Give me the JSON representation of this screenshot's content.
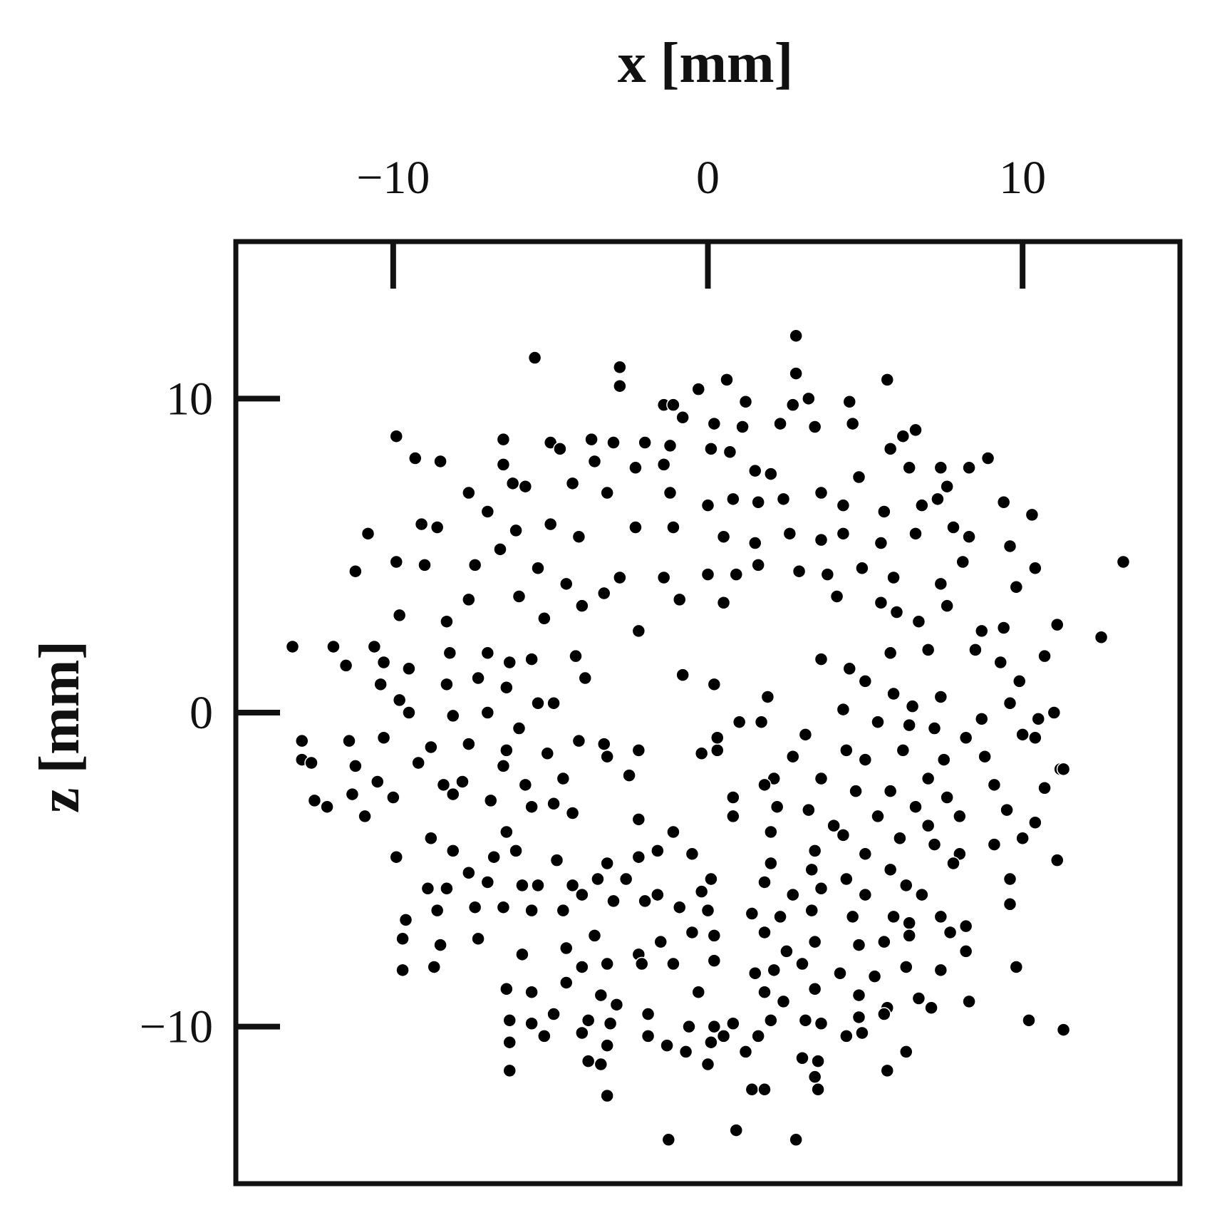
{
  "chart_data": {
    "type": "scatter",
    "x_label": "x [mm]",
    "y_label": "z [mm]",
    "xlim": [
      -15,
      15
    ],
    "ylim": [
      -15,
      15
    ],
    "xticks": [
      {
        "value": -10,
        "label": "−10"
      },
      0,
      10
    ],
    "yticks": [
      {
        "value": -10,
        "label": "−10"
      },
      0,
      10
    ],
    "x_axis_position": "top",
    "color": "#000000",
    "x": [
      -5.5,
      -2.8,
      -2.8,
      0.6,
      2.8,
      2.8,
      5.7,
      -0.3,
      -1.4,
      -1.1,
      1.2,
      3.2,
      2.7,
      4.5,
      4.6,
      0.2,
      -0.8,
      1.1,
      2.3,
      3.4,
      -3.7,
      -5.0,
      -6.5,
      -3.0,
      -2.0,
      -1.2,
      0.1,
      0.7,
      5.8,
      6.6,
      6.2,
      8.9,
      8.3,
      7.4,
      -9.9,
      -9.3,
      -8.5,
      -6.5,
      -4.7,
      -3.6,
      -2.3,
      -1.4,
      1.5,
      2.0,
      4.8,
      6.4,
      7.6,
      -7.6,
      -6.2,
      -5.8,
      -4.3,
      -3.2,
      -1.2,
      0.0,
      0.8,
      1.6,
      2.4,
      3.6,
      4.3,
      5.6,
      6.8,
      7.3,
      9.4,
      10.3,
      -10.8,
      -9.1,
      -8.6,
      -7.0,
      -6.1,
      -5.0,
      -4.1,
      -2.3,
      -1.1,
      0.5,
      1.5,
      2.6,
      3.6,
      4.3,
      5.5,
      6.6,
      7.8,
      8.3,
      9.6,
      -11.2,
      -9.9,
      -9.0,
      -7.4,
      -6.6,
      -5.4,
      -4.5,
      -2.8,
      -1.4,
      0.0,
      0.9,
      1.6,
      2.9,
      3.8,
      4.9,
      5.9,
      7.4,
      8.1,
      10.4,
      9.8,
      -9.8,
      -8.3,
      -7.6,
      -6.0,
      -5.2,
      -4.0,
      -3.3,
      -2.2,
      0.5,
      -0.9,
      4.1,
      5.5,
      6.0,
      6.7,
      7.6,
      8.7,
      9.4,
      11.1,
      12.5,
      -13.2,
      -11.9,
      -10.6,
      -10.3,
      -9.5,
      -8.2,
      -7.0,
      -6.3,
      -5.6,
      -4.2,
      -3.9,
      -0.8,
      0.2,
      3.6,
      4.5,
      5.8,
      7.0,
      8.5,
      9.3,
      10.7,
      9.9,
      -11.5,
      -10.4,
      -9.8,
      -8.3,
      -7.3,
      -6.4,
      -5.4,
      -4.9,
      5.0,
      5.9,
      6.5,
      7.4,
      8.7,
      9.6,
      11.0,
      10.5,
      1.9,
      13.2,
      -9.5,
      -8.1,
      -7.0,
      -6.0,
      -4.1,
      -3.3,
      1.7,
      1.0,
      4.3,
      5.4,
      6.4,
      7.2,
      8.2,
      10.0,
      10.4,
      -12.9,
      -12.9,
      -12.6,
      -11.4,
      -10.3,
      -8.8,
      -7.6,
      -6.4,
      -5.1,
      -3.2,
      -2.2,
      -0.2,
      0.3,
      0.3,
      2.7,
      3.1,
      4.4,
      5.0,
      6.2,
      7.5,
      8.8,
      11.2,
      -11.2,
      -10.5,
      -9.2,
      -8.4,
      -7.8,
      -6.5,
      -5.8,
      -4.6,
      -2.5,
      2.1,
      3.6,
      4.7,
      5.8,
      7.0,
      7.6,
      9.1,
      10.7,
      11.3,
      -12.5,
      -12.1,
      -11.3,
      -10.0,
      -8.1,
      -6.9,
      -5.6,
      -4.9,
      -4.3,
      -2.2,
      0.8,
      1.8,
      2.2,
      3.2,
      4.0,
      5.4,
      6.6,
      7.0,
      8.0,
      9.5,
      10.4,
      -10.9,
      -8.8,
      -8.1,
      -6.4,
      -6.1,
      -1.1,
      0.8,
      2.0,
      3.4,
      4.3,
      5.0,
      6.1,
      7.2,
      8.0,
      9.1,
      10.0,
      -9.9,
      -7.6,
      -6.8,
      -5.9,
      -4.8,
      -4.3,
      -3.2,
      -2.2,
      -1.6,
      -0.5,
      0.1,
      2.0,
      3.3,
      4.4,
      5.8,
      6.3,
      7.8,
      9.6,
      11.1,
      -8.9,
      -8.3,
      -7.0,
      -5.4,
      -4.0,
      -3.5,
      -2.6,
      -1.6,
      -0.2,
      1.8,
      2.7,
      3.6,
      5.0,
      6.8,
      9.6,
      -9.6,
      -8.6,
      -7.4,
      -6.5,
      -5.6,
      -4.6,
      -3.0,
      -2.0,
      -0.9,
      0.0,
      1.4,
      2.3,
      3.3,
      4.6,
      5.9,
      6.4,
      7.4,
      8.2,
      -9.7,
      -8.5,
      -7.3,
      -5.9,
      -4.5,
      -3.6,
      -2.2,
      -1.5,
      -0.5,
      0.2,
      1.8,
      2.5,
      3.4,
      4.8,
      5.6,
      6.4,
      7.7,
      8.2,
      9.8,
      -9.7,
      -8.7,
      -4.0,
      -3.2,
      -2.1,
      -1.1,
      0.2,
      1.5,
      2.1,
      3.0,
      4.2,
      5.3,
      6.3,
      7.4,
      8.3,
      -6.4,
      -5.6,
      -4.5,
      -3.4,
      -2.9,
      -0.3,
      1.8,
      2.4,
      3.4,
      4.8,
      5.7,
      6.7,
      7.1,
      -6.3,
      -5.6,
      -4.9,
      -3.8,
      -3.1,
      -1.9,
      -0.6,
      0.2,
      0.8,
      2.0,
      3.1,
      3.6,
      4.8,
      5.6,
      10.2,
      11.3,
      -6.3,
      -5.2,
      -4.0,
      -3.2,
      -1.9,
      -1.3,
      -0.7,
      0.1,
      0.5,
      1.2,
      1.6,
      3.0,
      3.5,
      4.4,
      4.9,
      6.3,
      -6.3,
      -3.8,
      -3.4,
      0.0,
      3.4,
      5.7,
      -3.2,
      1.4,
      1.8,
      3.5,
      -1.25,
      0.9,
      2.8
    ],
    "values": [
      11.3,
      11.0,
      10.4,
      10.6,
      12.0,
      10.8,
      10.6,
      10.3,
      9.8,
      9.8,
      9.9,
      10.0,
      9.8,
      9.9,
      9.2,
      9.2,
      9.4,
      9.1,
      9.2,
      9.1,
      8.7,
      8.6,
      8.7,
      8.6,
      8.6,
      8.5,
      8.4,
      8.3,
      8.4,
      9.0,
      8.8,
      8.1,
      7.8,
      7.8,
      8.8,
      8.1,
      8.0,
      7.9,
      8.4,
      8.0,
      7.8,
      7.9,
      7.7,
      7.6,
      7.5,
      7.8,
      7.2,
      7.0,
      7.3,
      7.2,
      7.3,
      7.0,
      7.0,
      6.6,
      6.8,
      6.7,
      6.8,
      7.0,
      6.6,
      6.4,
      6.6,
      6.8,
      6.7,
      6.3,
      5.7,
      6.0,
      5.9,
      6.4,
      5.8,
      6.0,
      5.6,
      5.9,
      5.9,
      5.6,
      5.4,
      5.7,
      5.5,
      5.7,
      5.4,
      5.7,
      5.9,
      5.6,
      5.3,
      4.5,
      4.8,
      4.7,
      4.7,
      5.2,
      4.6,
      4.1,
      4.3,
      4.3,
      4.4,
      4.4,
      4.7,
      4.5,
      4.4,
      4.6,
      4.3,
      4.1,
      4.8,
      4.6,
      4.0,
      3.1,
      2.9,
      3.6,
      3.7,
      3.0,
      3.4,
      3.8,
      2.6,
      3.5,
      3.6,
      3.7,
      3.5,
      3.2,
      2.9,
      3.4,
      2.6,
      2.7,
      2.8,
      2.4,
      2.1,
      2.1,
      2.1,
      1.6,
      1.4,
      1.9,
      1.9,
      1.6,
      1.7,
      1.8,
      1.1,
      1.2,
      0.9,
      1.7,
      1.4,
      1.9,
      2.0,
      2.0,
      1.6,
      1.8,
      1.0,
      1.5,
      0.9,
      0.4,
      0.9,
      1.1,
      0.8,
      0.3,
      0.3,
      1.0,
      0.6,
      0.2,
      0.5,
      -0.2,
      0.3,
      0.0,
      -0.2,
      0.5,
      4.8,
      0.0,
      -0.1,
      0.0,
      -0.5,
      -0.9,
      -1.0,
      -0.3,
      -0.3,
      0.1,
      -0.3,
      -0.4,
      -0.5,
      -0.8,
      -0.7,
      -0.8,
      -0.9,
      -1.5,
      -1.6,
      -0.9,
      -0.8,
      -1.1,
      -1.0,
      -1.2,
      -1.3,
      -1.4,
      -1.2,
      -1.3,
      -1.2,
      -0.8,
      -1.4,
      -0.7,
      -1.2,
      -1.5,
      -1.2,
      -1.5,
      -1.4,
      -1.8,
      -1.7,
      -2.2,
      -1.6,
      -2.3,
      -2.2,
      -1.7,
      -2.3,
      -2.1,
      -2.0,
      -2.1,
      -2.1,
      -2.5,
      -2.5,
      -2.1,
      -2.7,
      -2.3,
      -2.4,
      -1.8,
      -2.8,
      -3.0,
      -2.6,
      -2.7,
      -2.6,
      -2.8,
      -3.0,
      -2.9,
      -3.2,
      -3.4,
      -2.7,
      -2.3,
      -3.0,
      -3.1,
      -3.6,
      -3.3,
      -3.0,
      -3.6,
      -3.3,
      -3.1,
      -3.5,
      -3.3,
      -4.0,
      -4.4,
      -3.8,
      -4.4,
      -3.8,
      -3.3,
      -3.8,
      -4.4,
      -3.9,
      -4.5,
      -4.0,
      -4.2,
      -4.5,
      -4.2,
      -4.0,
      -4.6,
      -5.1,
      -4.6,
      -5.5,
      -4.7,
      -5.5,
      -4.8,
      -4.6,
      -4.4,
      -4.5,
      -5.3,
      -4.8,
      -5.0,
      -5.3,
      -5.0,
      -5.5,
      -4.8,
      -5.3,
      -4.7,
      -5.6,
      -5.6,
      -5.4,
      -5.5,
      -5.8,
      -5.3,
      -5.3,
      -5.8,
      -5.7,
      -5.4,
      -5.8,
      -5.6,
      -5.8,
      -5.8,
      -6.1,
      -6.6,
      -6.3,
      -6.2,
      -6.2,
      -6.3,
      -6.3,
      -6.0,
      -6.0,
      -6.2,
      -6.3,
      -6.4,
      -6.5,
      -6.3,
      -6.5,
      -6.5,
      -6.7,
      -6.5,
      -6.8,
      -7.2,
      -7.4,
      -7.2,
      -7.7,
      -7.5,
      -7.1,
      -7.7,
      -7.3,
      -7.0,
      -7.1,
      -7.0,
      -7.6,
      -7.3,
      -7.4,
      -7.3,
      -7.1,
      -7.0,
      -7.6,
      -8.1,
      -8.2,
      -8.1,
      -8.1,
      -8.0,
      -8.0,
      -8.0,
      -7.9,
      -8.3,
      -8.2,
      -8.0,
      -8.3,
      -8.4,
      -8.1,
      -8.2,
      -9.2,
      -8.8,
      -8.9,
      -8.6,
      -9.0,
      -9.3,
      -8.9,
      -8.9,
      -9.2,
      -8.8,
      -9.0,
      -9.4,
      -9.1,
      -9.4,
      -9.8,
      -9.9,
      -9.6,
      -9.8,
      -9.9,
      -9.6,
      -10.0,
      -10.0,
      -9.9,
      -9.8,
      -9.8,
      -9.9,
      -9.7,
      -9.6,
      -9.8,
      -10.1,
      -10.5,
      -10.3,
      -10.2,
      -10.6,
      -10.3,
      -10.6,
      -10.8,
      -10.5,
      -10.3,
      -10.8,
      -10.3,
      -11.0,
      -11.1,
      -10.3,
      -10.2,
      -10.8,
      -11.4,
      -11.1,
      -11.2,
      -11.2,
      -11.6,
      -11.4,
      -12.2,
      -12.0,
      -12.0,
      -12.0,
      -13.6,
      -13.3,
      -13.6
    ]
  }
}
